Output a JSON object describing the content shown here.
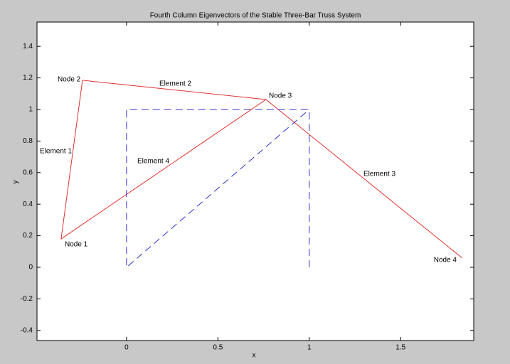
{
  "chart_data": {
    "type": "line",
    "title": "Fourth Column Eigenvectors of the Stable Three-Bar Truss System",
    "x_label": "x",
    "y_label": "y",
    "series": [
      {
        "color": "#e03030",
        "dash": false,
        "x": [
          1.837,
          0.763,
          -0.358,
          -0.241,
          0.763
        ],
        "values": [
          0.059,
          1.063,
          0.18,
          1.185,
          1.063
        ]
      },
      {
        "color": "#3030d0",
        "dash": true,
        "x": [
          1,
          1,
          0,
          0,
          1
        ],
        "values": [
          0,
          1,
          1,
          0,
          1
        ]
      }
    ],
    "annotations": [
      "Node 1",
      "Node 2",
      "Node 3",
      "Node 4",
      "Element 1",
      "Element 2",
      "Element 3",
      "Element 4"
    ],
    "xlim": [
      -0.49,
      1.9
    ],
    "ylim": [
      -0.464,
      1.554
    ],
    "xticks": [
      0,
      0.5,
      1,
      1.5
    ],
    "yticks": [
      -0.4,
      -0.2,
      0,
      0.2,
      0.4,
      0.6,
      0.8,
      1,
      1.2,
      1.4
    ],
    "grid": false
  }
}
